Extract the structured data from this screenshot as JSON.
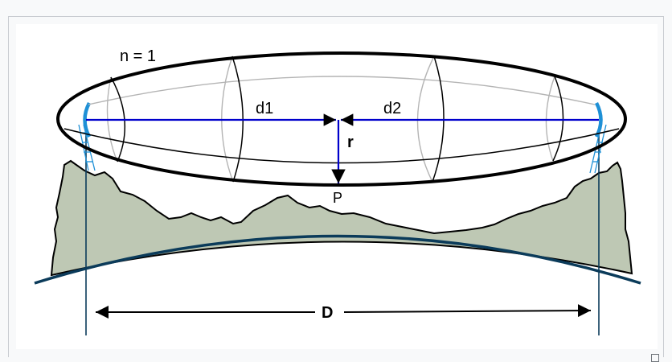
{
  "diagram": {
    "labels": {
      "zone": "n = 1",
      "d1": "d1",
      "d2": "d2",
      "radius": "r",
      "point": "P",
      "distance": "D"
    },
    "colors": {
      "ray": "#0000cc",
      "ground": "#bec8b4",
      "earth_curve": "#0b3b5a",
      "antenna": "#1e90d6",
      "ellipse": "#000000",
      "cross_section": "#b4b4b4",
      "frame_border": "#c8ccd1"
    }
  }
}
